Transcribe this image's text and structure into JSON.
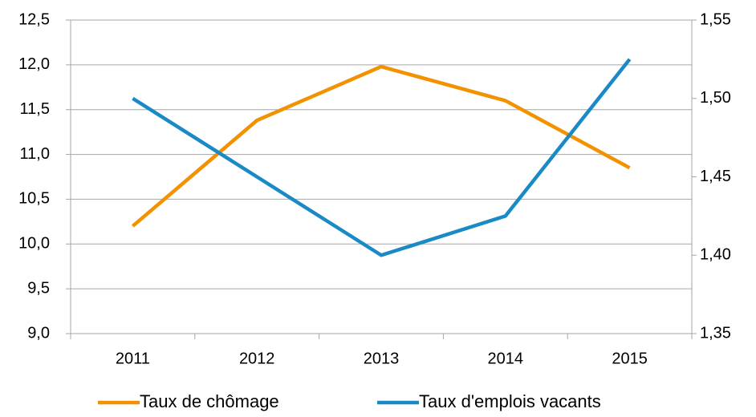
{
  "chart_data": {
    "type": "line",
    "categories": [
      "2011",
      "2012",
      "2013",
      "2014",
      "2015"
    ],
    "series": [
      {
        "name": "Taux de chômage",
        "color": "#f39200",
        "values": [
          10.2,
          11.38,
          11.98,
          11.6,
          10.85
        ]
      },
      {
        "name": "Taux d'emplois vacants",
        "color": "#1a8ac6",
        "axis": "y2",
        "values": [
          1.5,
          1.45,
          1.4,
          1.425,
          1.525
        ]
      }
    ],
    "ylim": [
      9.0,
      12.5
    ],
    "yticks": [
      {
        "value": 9.0,
        "label": "9,0"
      },
      {
        "value": 9.5,
        "label": "9,5"
      },
      {
        "value": 10.0,
        "label": "10,0"
      },
      {
        "value": 10.5,
        "label": "10,5"
      },
      {
        "value": 11.0,
        "label": "11,0"
      },
      {
        "value": 11.5,
        "label": "11,5"
      },
      {
        "value": 12.0,
        "label": "12,0"
      },
      {
        "value": 12.5,
        "label": "12,5"
      }
    ],
    "y2lim": [
      1.35,
      1.55
    ],
    "y2ticks": [
      {
        "value": 1.35,
        "label": "1,35"
      },
      {
        "value": 1.4,
        "label": "1,40"
      },
      {
        "value": 1.45,
        "label": "1,45"
      },
      {
        "value": 1.5,
        "label": "1,50"
      },
      {
        "value": 1.55,
        "label": "1,55"
      }
    ],
    "grid": true,
    "legend": "bottom"
  }
}
